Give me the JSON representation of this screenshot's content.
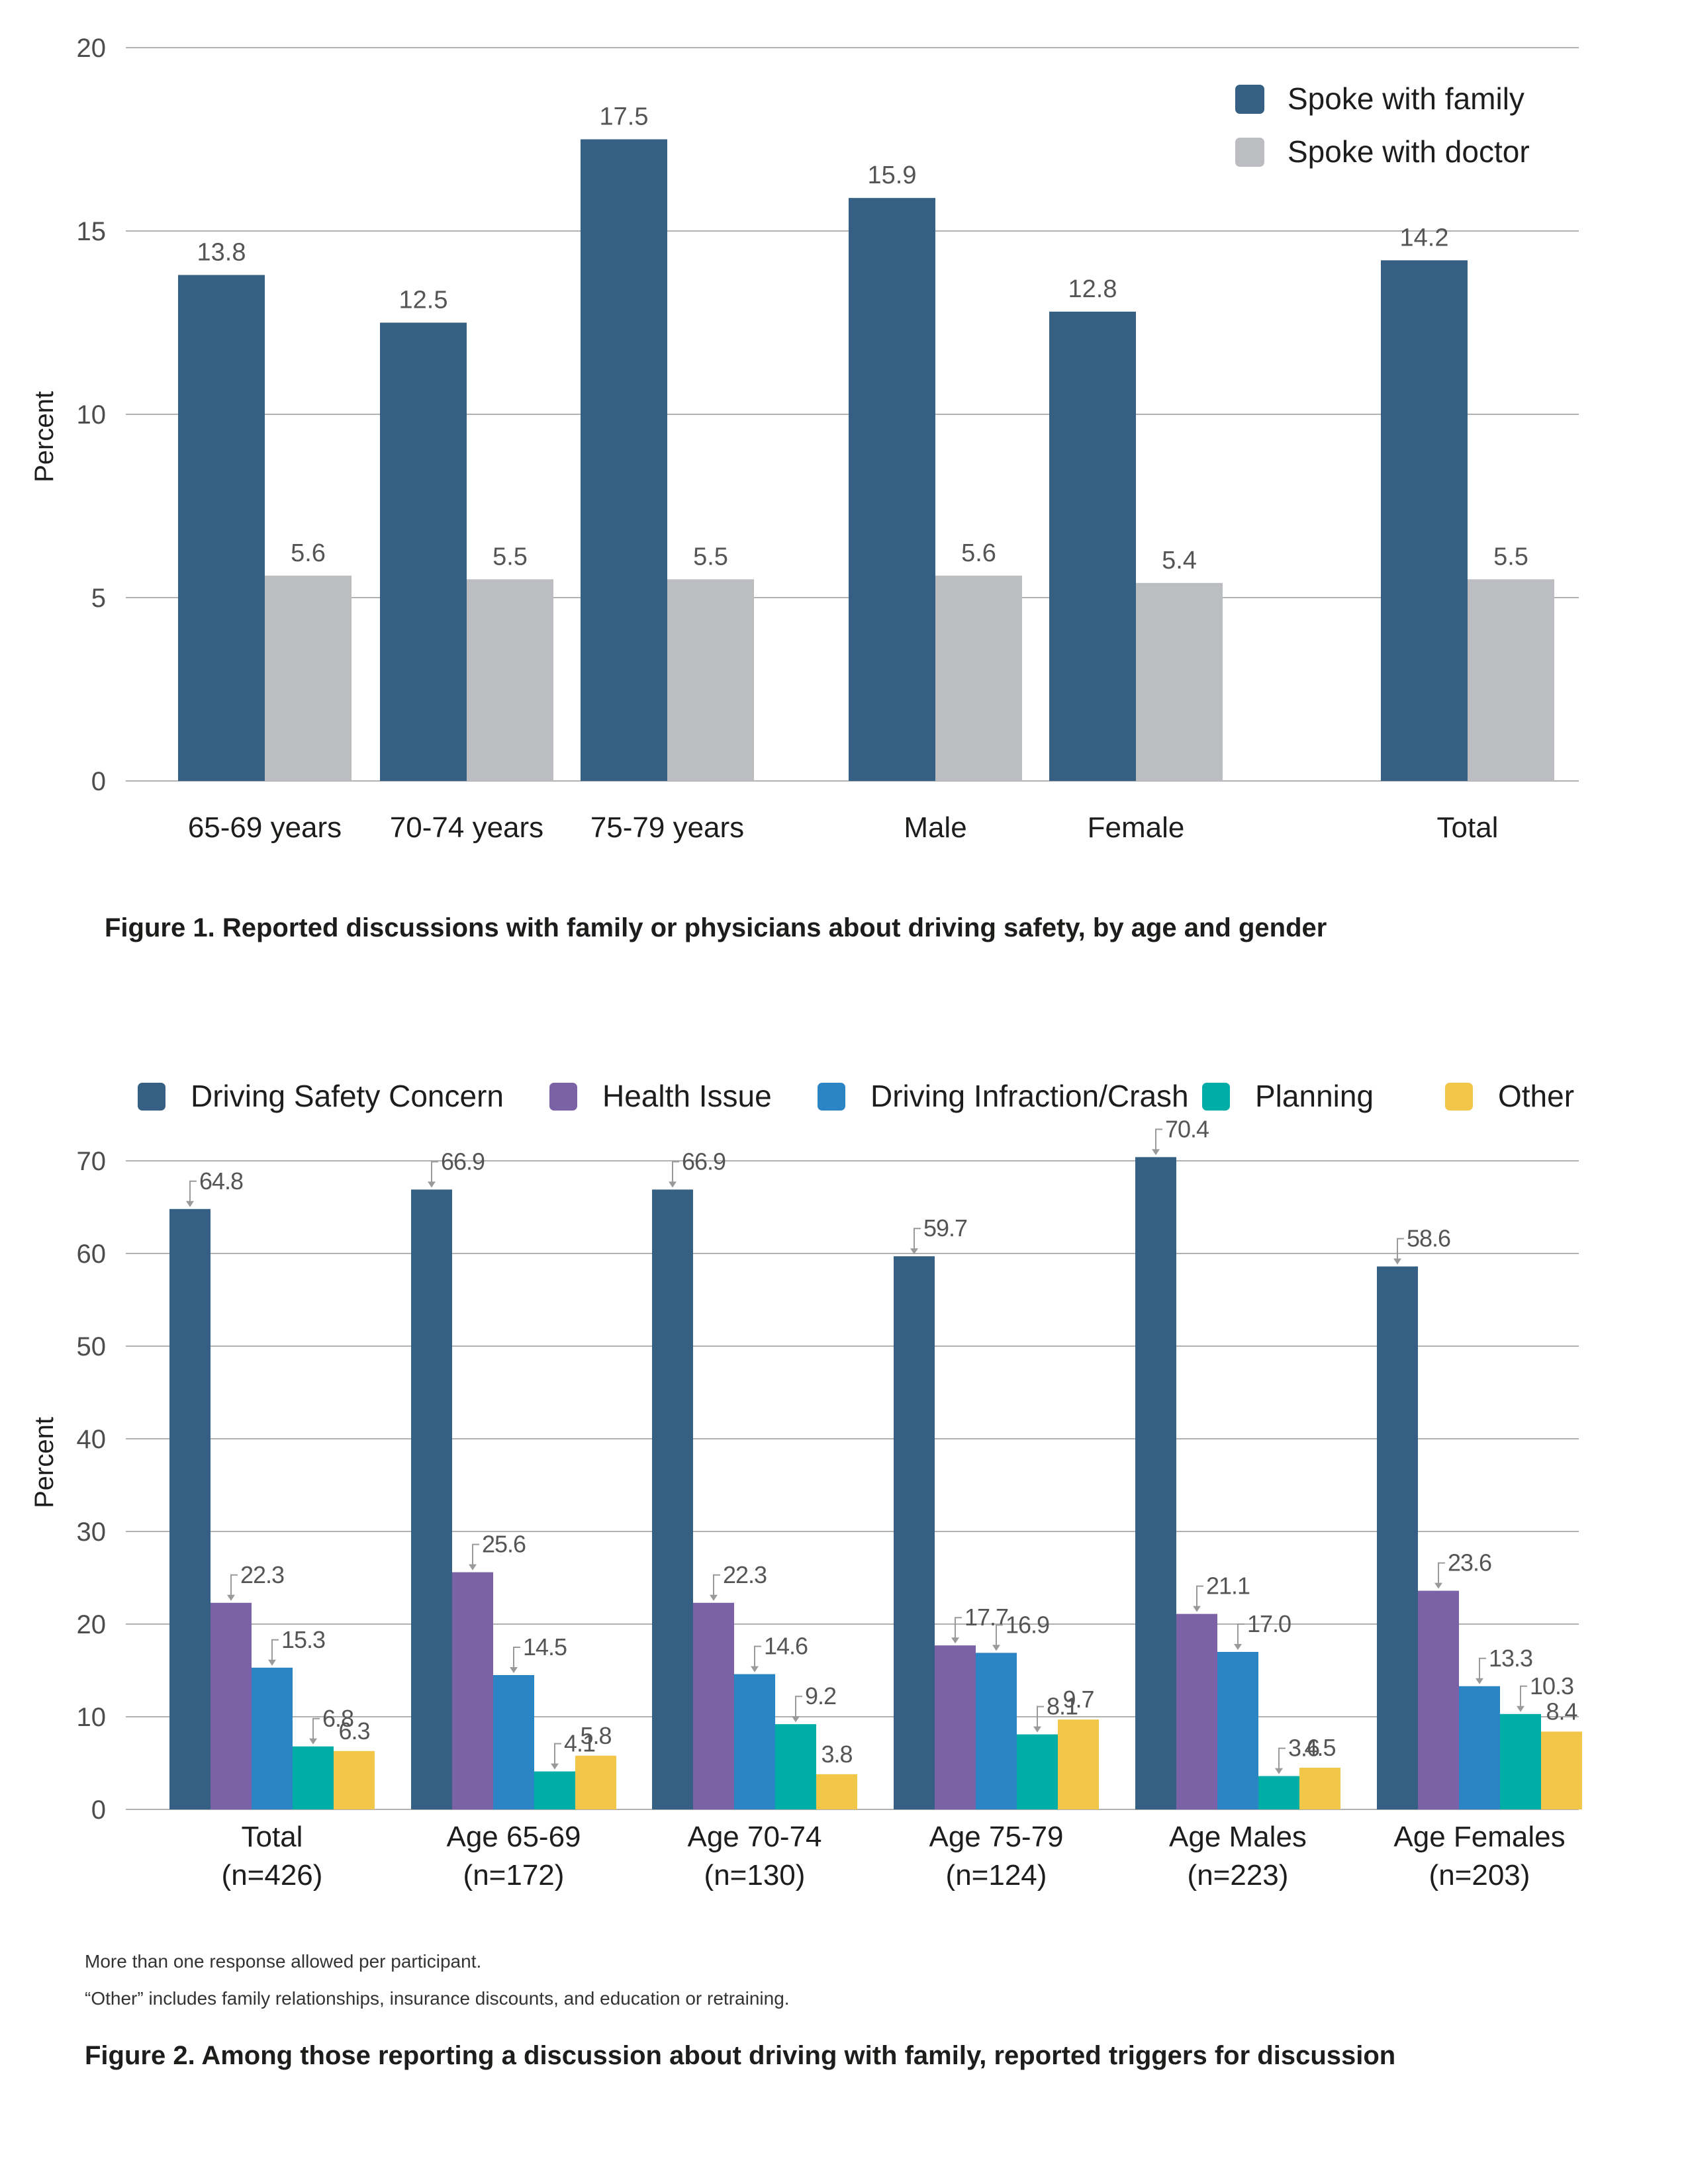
{
  "figure1": {
    "caption": "Figure 1. Reported discussions with family or physicians about driving safety, by age and gender",
    "chart_data": {
      "type": "bar",
      "ylabel": "Percent",
      "ylim": [
        0,
        20
      ],
      "yticks": [
        0,
        5,
        10,
        15,
        20
      ],
      "grid": true,
      "legend_position": "top-right",
      "categories": [
        "65-69 years",
        "70-74 years",
        "75-79 years",
        "Male",
        "Female",
        "Total"
      ],
      "series": [
        {
          "name": "Spoke with family",
          "color": "#355f83",
          "values": [
            13.8,
            12.5,
            17.5,
            15.9,
            12.8,
            14.2
          ]
        },
        {
          "name": "Spoke with doctor",
          "color": "#bcbdc0",
          "values": [
            5.6,
            5.5,
            5.5,
            5.6,
            5.4,
            5.5
          ]
        }
      ]
    }
  },
  "figure2": {
    "caption": "Figure 2. Among those reporting a discussion about driving with family, reported triggers for discussion",
    "notes": [
      "More than one response allowed per participant.",
      "“Other” includes family relationships, insurance discounts, and education or retraining."
    ],
    "chart_data": {
      "type": "bar",
      "ylabel": "Percent",
      "ylim": [
        0,
        70
      ],
      "yticks": [
        0,
        10,
        20,
        30,
        40,
        50,
        60,
        70
      ],
      "grid": true,
      "legend_position": "top",
      "categories": [
        {
          "line1": "Total",
          "line2": "(n=426)"
        },
        {
          "line1": "Age 65-69",
          "line2": "(n=172)"
        },
        {
          "line1": "Age 70-74",
          "line2": "(n=130)"
        },
        {
          "line1": "Age 75-79",
          "line2": "(n=124)"
        },
        {
          "line1": "Age Males",
          "line2": "(n=223)"
        },
        {
          "line1": "Age Females",
          "line2": "(n=203)"
        }
      ],
      "series": [
        {
          "name": "Driving Safety Concern",
          "color": "#355f83",
          "values": [
            64.8,
            66.9,
            66.9,
            59.7,
            70.4,
            58.6
          ]
        },
        {
          "name": "Health Issue",
          "color": "#7b61a6",
          "values": [
            22.3,
            25.6,
            22.3,
            17.7,
            21.1,
            23.6
          ]
        },
        {
          "name": "Driving Infraction/Crash",
          "color": "#2b85c4",
          "values": [
            15.3,
            14.5,
            14.6,
            16.9,
            17.0,
            13.3
          ]
        },
        {
          "name": "Planning",
          "color": "#00ada7",
          "values": [
            6.8,
            4.1,
            9.2,
            8.1,
            3.6,
            10.3
          ]
        },
        {
          "name": "Other",
          "color": "#f2c649",
          "values": [
            6.3,
            5.8,
            3.8,
            9.7,
            4.5,
            8.4
          ]
        }
      ]
    }
  }
}
